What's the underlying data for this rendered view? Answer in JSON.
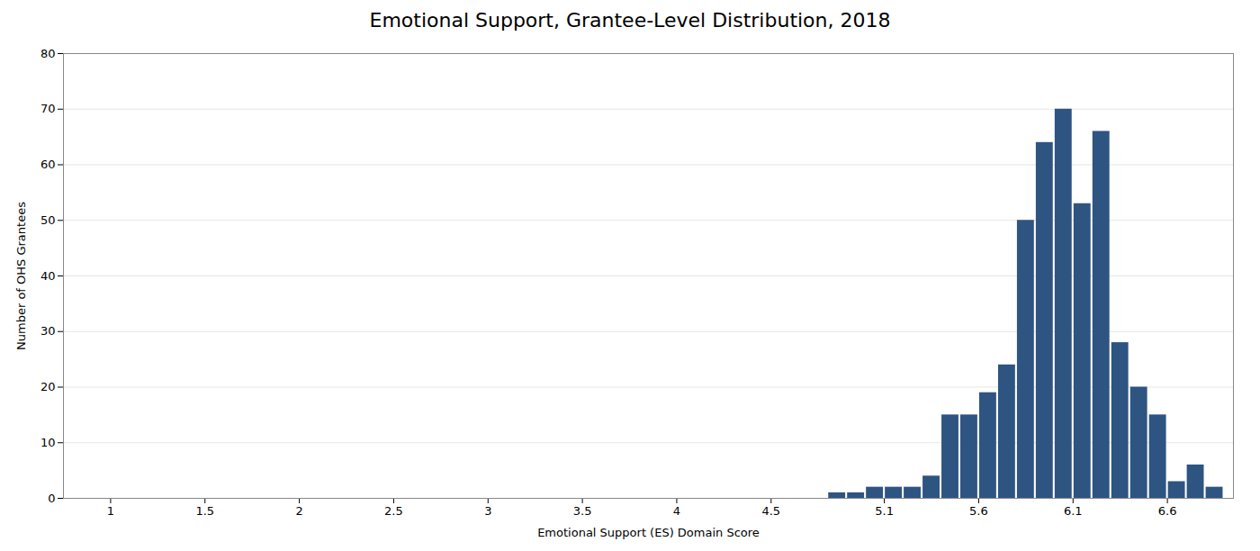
{
  "chart_data": {
    "type": "bar",
    "title": "Emotional Support, Grantee-Level Distribution, 2018",
    "xlabel": "Emotional Support (ES) Domain Score",
    "ylabel": "Number of OHS Grantees",
    "x": [
      4.85,
      4.95,
      5.05,
      5.15,
      5.25,
      5.35,
      5.45,
      5.55,
      5.65,
      5.75,
      5.85,
      5.95,
      6.05,
      6.15,
      6.25,
      6.35,
      6.45,
      6.55,
      6.65,
      6.75,
      6.85
    ],
    "values": [
      1,
      1,
      2,
      2,
      2,
      4,
      15,
      15,
      19,
      24,
      50,
      64,
      70,
      53,
      66,
      28,
      20,
      15,
      3,
      6,
      2
    ],
    "color": "#2E5481",
    "xlim": [
      0.75,
      6.95
    ],
    "xticks": [
      1,
      1.5,
      2,
      2.5,
      3,
      3.5,
      4,
      4.5,
      5.1,
      5.6,
      6.1,
      6.6
    ],
    "ylim": [
      0,
      80
    ],
    "yticks": [
      0,
      10,
      20,
      30,
      40,
      50,
      60,
      70,
      80
    ],
    "grid": true
  }
}
